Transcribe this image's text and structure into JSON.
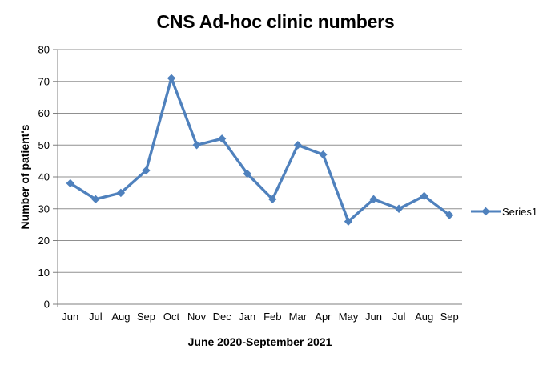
{
  "chart_data": {
    "type": "line",
    "title": "CNS Ad-hoc clinic numbers",
    "xlabel": "June 2020-September 2021",
    "ylabel": "Number of patient's",
    "categories": [
      "Jun",
      "Jul",
      "Aug",
      "Sep",
      "Oct",
      "Nov",
      "Dec",
      "Jan",
      "Feb",
      "Mar",
      "Apr",
      "May",
      "Jun",
      "Jul",
      "Aug",
      "Sep"
    ],
    "series": [
      {
        "name": "Series1",
        "values": [
          38,
          33,
          35,
          42,
          71,
          50,
          52,
          41,
          33,
          50,
          47,
          26,
          33,
          30,
          34,
          28
        ]
      }
    ],
    "ylim": [
      0,
      80
    ],
    "ytick_step": 10,
    "y_ticks": [
      0,
      10,
      20,
      30,
      40,
      50,
      60,
      70,
      80
    ],
    "grid": true,
    "legend_position": "right",
    "marker": "diamond",
    "colors": {
      "series": "#4F81BD",
      "gridline": "#909090",
      "axis": "#7F7F7F",
      "text": "#000000",
      "background": "#FFFFFF"
    }
  }
}
